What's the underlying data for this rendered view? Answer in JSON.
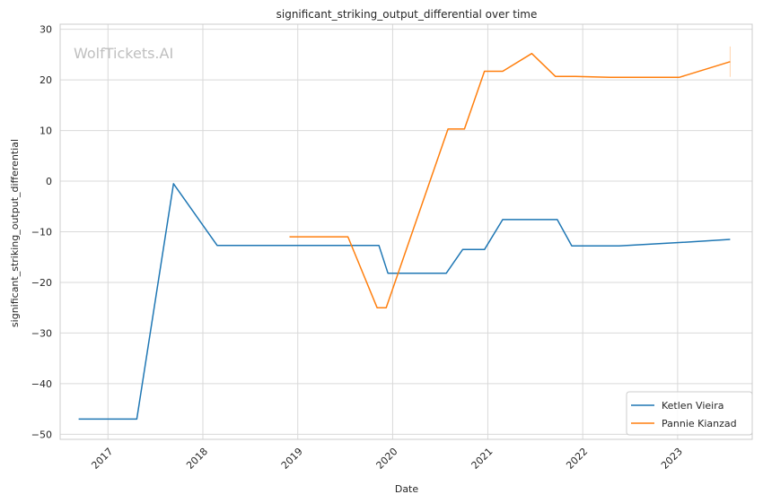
{
  "watermark": "WolfTickets.AI",
  "chart_data": {
    "type": "line",
    "title": "significant_striking_output_differential over time",
    "xlabel": "Date",
    "ylabel": "significant_striking_output_differential",
    "xlim": [
      "2016-07-01",
      "2023-10-15"
    ],
    "ylim": [
      -51,
      31
    ],
    "x_ticks": [
      "2017-01-01",
      "2018-01-01",
      "2019-01-01",
      "2020-01-01",
      "2021-01-01",
      "2022-01-01",
      "2023-01-01"
    ],
    "x_tick_labels": [
      "2017",
      "2018",
      "2019",
      "2020",
      "2021",
      "2022",
      "2023"
    ],
    "y_ticks": [
      30,
      20,
      10,
      0,
      -10,
      -20,
      -30,
      -40,
      -50
    ],
    "y_tick_labels": [
      "30",
      "20",
      "10",
      "0",
      "−10",
      "−20",
      "−30",
      "−40",
      "−50"
    ],
    "grid": true,
    "legend_position": "lower-right",
    "series": [
      {
        "name": "Ketlen Vieira",
        "color": "#1f77b4",
        "points": [
          {
            "x": "2016-09-10",
            "y": -47
          },
          {
            "x": "2017-04-22",
            "y": -47
          },
          {
            "x": "2017-09-10",
            "y": -0.5
          },
          {
            "x": "2018-02-25",
            "y": -12.7
          },
          {
            "x": "2019-11-09",
            "y": -12.7
          },
          {
            "x": "2019-12-14",
            "y": -18.2
          },
          {
            "x": "2020-07-25",
            "y": -18.2
          },
          {
            "x": "2020-09-26",
            "y": -13.5
          },
          {
            "x": "2020-12-19",
            "y": -13.5
          },
          {
            "x": "2021-02-27",
            "y": -7.6
          },
          {
            "x": "2021-09-25",
            "y": -7.6
          },
          {
            "x": "2021-11-20",
            "y": -12.8
          },
          {
            "x": "2022-05-21",
            "y": -12.8
          },
          {
            "x": "2023-01-14",
            "y": -12.1
          },
          {
            "x": "2023-07-22",
            "y": -11.5
          }
        ]
      },
      {
        "name": "Pannie Kianzad",
        "color": "#ff7f0e",
        "points": [
          {
            "x": "2018-11-30",
            "y": -11
          },
          {
            "x": "2019-07-13",
            "y": -11
          },
          {
            "x": "2019-11-02",
            "y": -25
          },
          {
            "x": "2019-12-07",
            "y": -25
          },
          {
            "x": "2020-08-01",
            "y": 10.3
          },
          {
            "x": "2020-10-03",
            "y": 10.3
          },
          {
            "x": "2020-12-19",
            "y": 21.7
          },
          {
            "x": "2021-02-27",
            "y": 21.7
          },
          {
            "x": "2021-06-19",
            "y": 25.2
          },
          {
            "x": "2021-09-18",
            "y": 20.7
          },
          {
            "x": "2021-12-04",
            "y": 20.7
          },
          {
            "x": "2022-04-16",
            "y": 20.5
          },
          {
            "x": "2023-01-07",
            "y": 20.5
          },
          {
            "x": "2023-07-22",
            "y": 23.6
          }
        ]
      }
    ]
  }
}
